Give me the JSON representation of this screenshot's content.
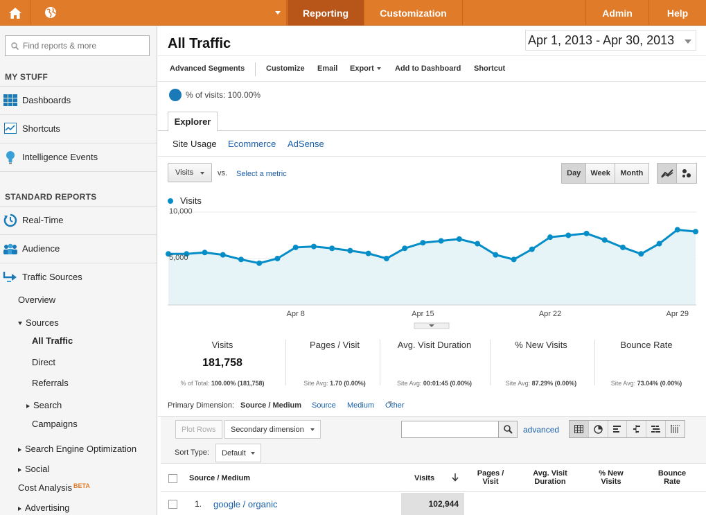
{
  "topbar": {
    "tabs": [
      {
        "label": "Reporting",
        "active": true
      },
      {
        "label": "Customization",
        "active": false
      },
      {
        "label": "Admin",
        "active": false
      },
      {
        "label": "Help",
        "active": false
      }
    ],
    "colors": {
      "bar": "#e07b2a",
      "active": "#b8561a"
    }
  },
  "sidebar": {
    "search_placeholder": "Find reports & more",
    "my_stuff": "MY STUFF",
    "standard_reports": "STANDARD REPORTS",
    "items": {
      "dashboards": "Dashboards",
      "shortcuts": "Shortcuts",
      "intelligence": "Intelligence Events",
      "realtime": "Real-Time",
      "audience": "Audience",
      "traffic_sources": "Traffic Sources"
    },
    "sub": {
      "overview": "Overview",
      "sources": "Sources",
      "all_traffic": "All Traffic",
      "direct": "Direct",
      "referrals": "Referrals",
      "search": "Search",
      "campaigns": "Campaigns",
      "seo": "Search Engine Optimization",
      "social": "Social",
      "cost_analysis": "Cost Analysis",
      "beta": "BETA",
      "advertising": "Advertising"
    }
  },
  "main": {
    "title": "All Traffic",
    "date_range": "Apr 1, 2013 - Apr 30, 2013",
    "toolbar": {
      "advanced_segments": "Advanced Segments",
      "customize": "Customize",
      "email": "Email",
      "export": "Export",
      "add_to_dashboard": "Add to Dashboard",
      "shortcut": "Shortcut"
    },
    "pct_visits": "% of visits: 100.00%",
    "explorer_tab": "Explorer",
    "subtabs": {
      "site_usage": "Site Usage",
      "ecommerce": "Ecommerce",
      "adsense": "AdSense"
    },
    "metric": "Visits",
    "vs": "vs.",
    "select_metric": "Select a metric",
    "granularity": {
      "day": "Day",
      "week": "Week",
      "month": "Month"
    },
    "legend": "Visits"
  },
  "chart_data": {
    "type": "area",
    "series": [
      {
        "name": "Visits",
        "color": "#058dc7",
        "values": [
          5500,
          5500,
          5650,
          5400,
          4900,
          4500,
          5000,
          6200,
          6300,
          6100,
          5850,
          5550,
          5000,
          6100,
          6700,
          6900,
          7100,
          6600,
          5400,
          4900,
          6000,
          7300,
          7500,
          7700,
          7000,
          6200,
          5500,
          6600,
          8100,
          7900
        ]
      }
    ],
    "x_tick_labels": [
      "Apr 8",
      "Apr 15",
      "Apr 22",
      "Apr 29"
    ],
    "y_tick_labels": [
      "10,000",
      "5,000"
    ],
    "ylim": [
      0,
      10000
    ]
  },
  "scorecards": [
    {
      "title": "Visits",
      "value": "181,758",
      "sub_label": "% of Total:",
      "sub_value": "100.00% (181,758)"
    },
    {
      "title": "Pages / Visit",
      "value": "",
      "sub_label": "Site Avg:",
      "sub_value": "1.70 (0.00%)"
    },
    {
      "title": "Avg. Visit Duration",
      "value": "",
      "sub_label": "Site Avg:",
      "sub_value": "00:01:45 (0.00%)"
    },
    {
      "title": "% New Visits",
      "value": "",
      "sub_label": "Site Avg:",
      "sub_value": "87.29% (0.00%)"
    },
    {
      "title": "Bounce Rate",
      "value": "",
      "sub_label": "Site Avg:",
      "sub_value": "73.04% (0.00%)"
    }
  ],
  "primary_dimension": {
    "label": "Primary Dimension:",
    "selected": "Source / Medium",
    "options": [
      "Source",
      "Medium",
      "Other"
    ]
  },
  "table_controls": {
    "plot_rows": "Plot Rows",
    "secondary_dimension": "Secondary dimension",
    "sort_type_label": "Sort Type:",
    "sort_type_value": "Default",
    "advanced": "advanced"
  },
  "table": {
    "headers": {
      "source_medium": "Source / Medium",
      "visits": "Visits",
      "pages_visit": "Pages / Visit",
      "avg_duration": "Avg. Visit Duration",
      "new_visits": "% New Visits",
      "bounce_rate": "Bounce Rate"
    },
    "rows": [
      {
        "index": "1.",
        "source_medium": "google / organic",
        "visits": "102,944"
      }
    ]
  }
}
